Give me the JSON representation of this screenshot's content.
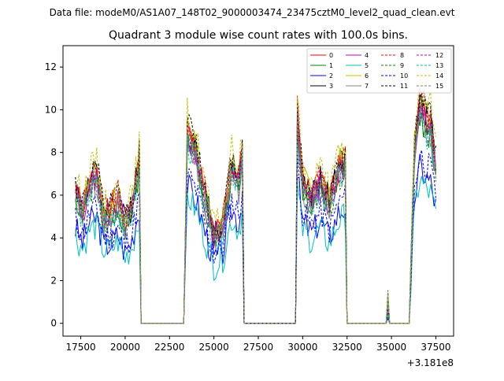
{
  "figure": {
    "suptitle": "Data file: modeM0/AS1A07_148T02_9000003474_23475cztM0_level2_quad_clean.evt",
    "title": "Quadrant 3 module wise count rates with 100.0s bins.",
    "offset_text": "+3.181e8"
  },
  "chart_data": {
    "type": "line",
    "title": "Quadrant 3 module wise count rates with 100.0s bins.",
    "xlabel": "",
    "ylabel": "",
    "x_offset": 318100000,
    "xlim": [
      16500,
      38500
    ],
    "ylim": [
      -0.6,
      13.0
    ],
    "xticks": [
      17500,
      20000,
      22500,
      25000,
      27500,
      30000,
      32500,
      35000,
      37500
    ],
    "xtick_labels": [
      "17500",
      "20000",
      "22500",
      "25000",
      "27500",
      "30000",
      "32500",
      "35000",
      "37500"
    ],
    "yticks": [
      0,
      2,
      4,
      6,
      8,
      10,
      12
    ],
    "ytick_labels": [
      "0",
      "2",
      "4",
      "6",
      "8",
      "10",
      "12"
    ],
    "grid": false,
    "legend_placement": "top-right",
    "legend_columns": 4,
    "base_profile": {
      "x": [
        17200,
        17600,
        18000,
        18400,
        18800,
        19200,
        19600,
        20000,
        20400,
        20800,
        20900,
        23300,
        23500,
        24000,
        24500,
        25000,
        25500,
        26000,
        26400,
        26600,
        26700,
        29600,
        29700,
        30000,
        30500,
        31000,
        31500,
        32000,
        32400,
        32500,
        34700,
        34800,
        34900,
        36000,
        36300,
        36600,
        36900,
        37200,
        37500
      ],
      "y": [
        6.2,
        5.3,
        6.6,
        6.9,
        5.1,
        5.2,
        5.8,
        4.6,
        5.5,
        7.6,
        0.0,
        0.0,
        9.0,
        8.0,
        6.0,
        4.1,
        4.6,
        7.4,
        6.6,
        8.0,
        0.0,
        0.0,
        9.6,
        6.6,
        5.9,
        6.7,
        5.6,
        7.2,
        7.6,
        0.0,
        0.0,
        1.0,
        0.0,
        0.0,
        8.2,
        10.2,
        9.6,
        9.2,
        7.6
      ]
    },
    "series": [
      {
        "name": "0",
        "color": "#ff0000",
        "dash": "solid",
        "scale": 1.0,
        "seed": 1
      },
      {
        "name": "1",
        "color": "#008000",
        "dash": "solid",
        "scale": 0.96,
        "seed": 2
      },
      {
        "name": "2",
        "color": "#0000ff",
        "dash": "solid",
        "scale": 0.72,
        "seed": 3
      },
      {
        "name": "3",
        "color": "#000000",
        "dash": "solid",
        "scale": 1.02,
        "seed": 4
      },
      {
        "name": "4",
        "color": "#bf00bf",
        "dash": "solid",
        "scale": 0.98,
        "seed": 5
      },
      {
        "name": "5",
        "color": "#00bfbf",
        "dash": "solid",
        "scale": 0.66,
        "seed": 6
      },
      {
        "name": "6",
        "color": "#bfbf00",
        "dash": "solid",
        "scale": 1.03,
        "seed": 7
      },
      {
        "name": "7",
        "color": "#808080",
        "dash": "solid",
        "scale": 0.94,
        "seed": 8
      },
      {
        "name": "8",
        "color": "#ff0000",
        "dash": "dashed",
        "scale": 1.04,
        "seed": 9
      },
      {
        "name": "9",
        "color": "#008000",
        "dash": "dashed",
        "scale": 0.95,
        "seed": 10
      },
      {
        "name": "10",
        "color": "#0000ff",
        "dash": "dashed",
        "scale": 0.78,
        "seed": 11
      },
      {
        "name": "11",
        "color": "#000000",
        "dash": "dashed",
        "scale": 1.05,
        "seed": 12
      },
      {
        "name": "12",
        "color": "#bf00bf",
        "dash": "dashed",
        "scale": 0.99,
        "seed": 13
      },
      {
        "name": "13",
        "color": "#00bfbf",
        "dash": "dashed",
        "scale": 0.93,
        "seed": 14
      },
      {
        "name": "14",
        "color": "#bfbf00",
        "dash": "dashed",
        "scale": 1.1,
        "seed": 15
      },
      {
        "name": "15",
        "color": "#808080",
        "dash": "dashed",
        "scale": 0.97,
        "seed": 16
      }
    ]
  }
}
